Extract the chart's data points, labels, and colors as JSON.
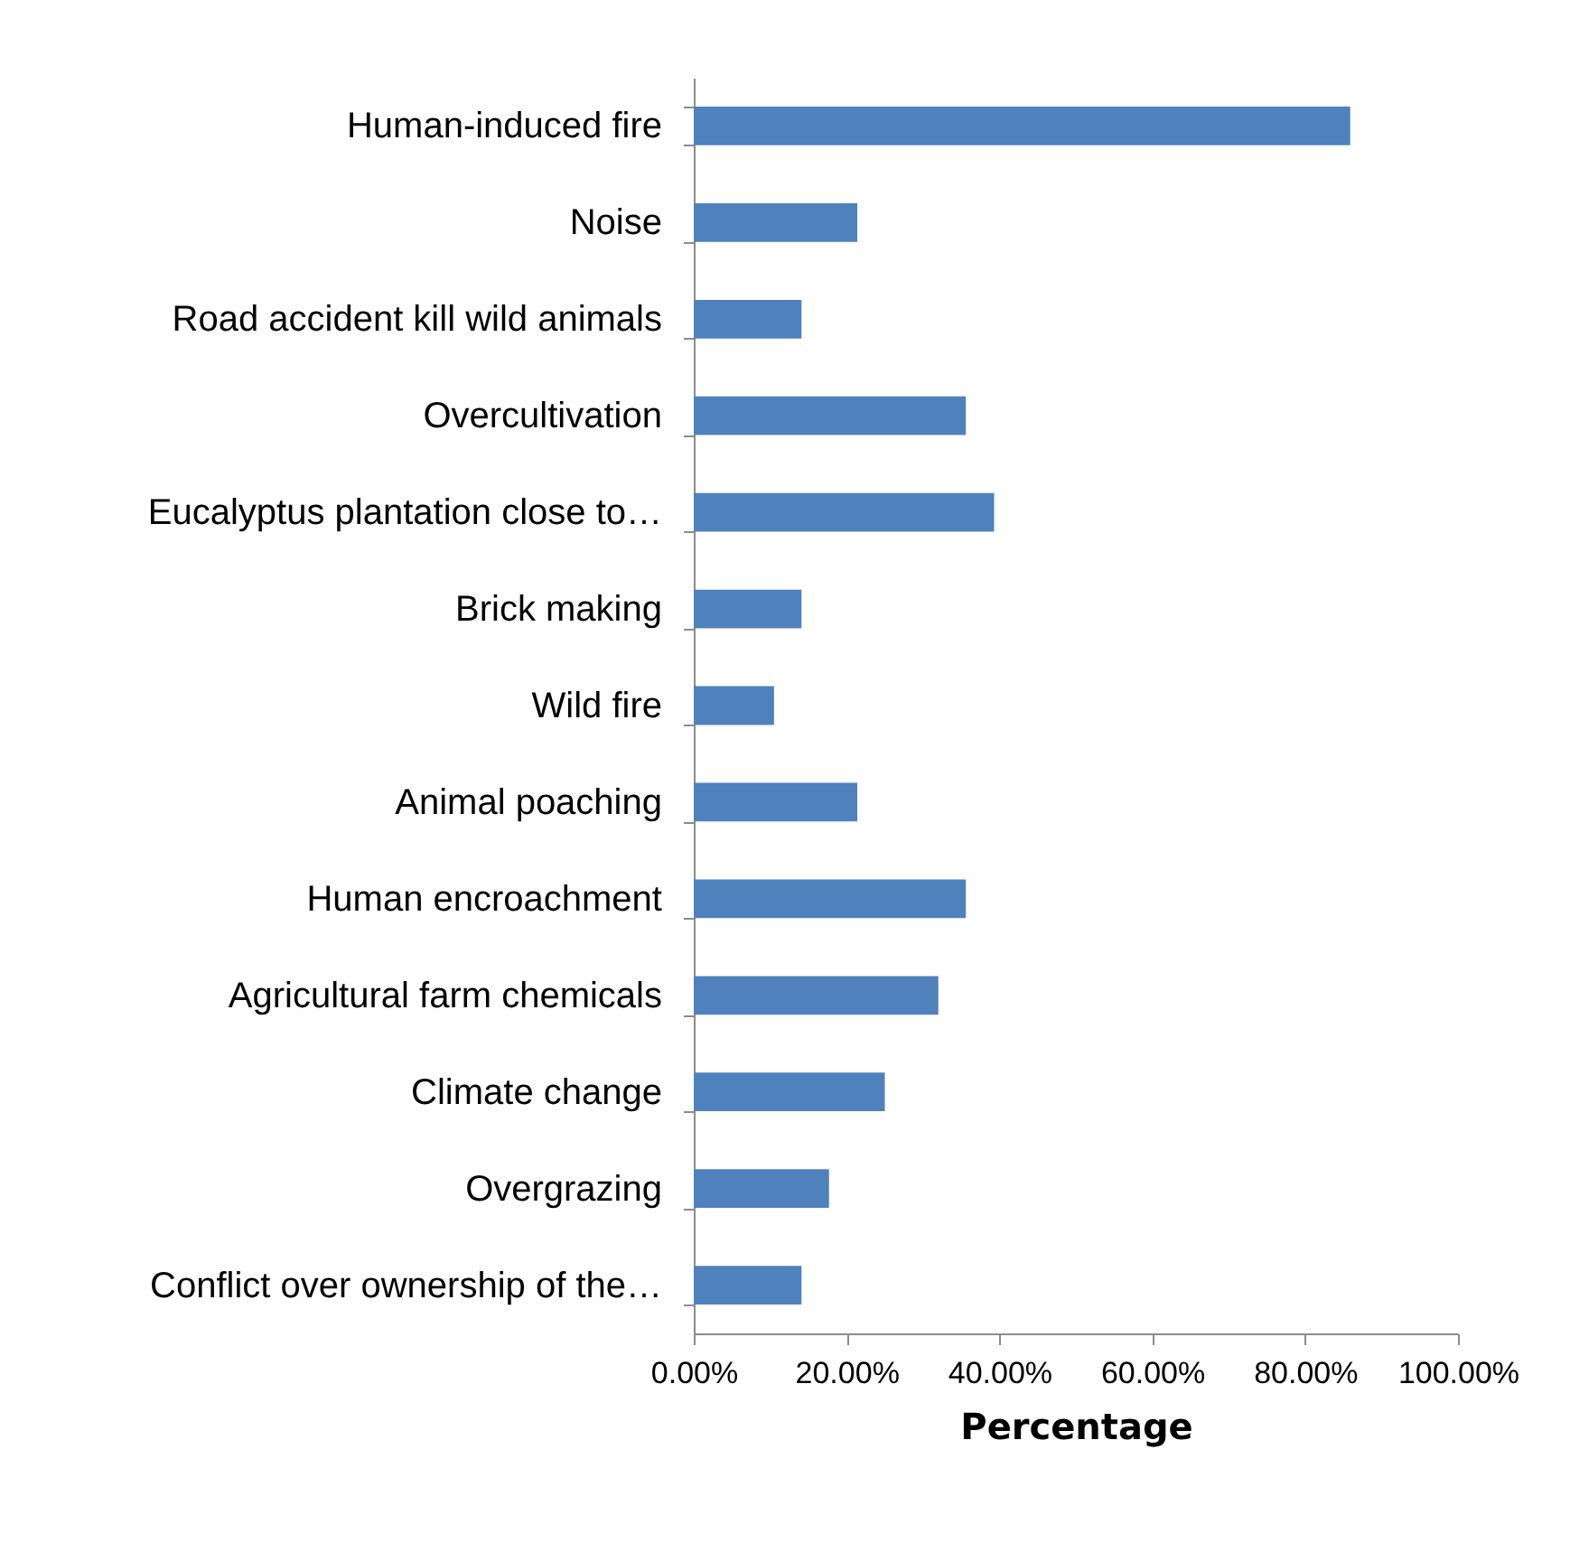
{
  "chart_data": {
    "type": "bar",
    "orientation": "horizontal",
    "xlabel": "Percentage",
    "categories": [
      "Human-induced fire",
      "Noise",
      "Road accident kill wild animals",
      "Overcultivation",
      "Eucalyptus plantation close to…",
      "Brick making",
      "Wild fire",
      "Animal poaching",
      "Human encroachment",
      "Agricultural farm chemicals",
      "Climate change",
      "Overgrazing",
      "Conflict over ownership of the…"
    ],
    "values": [
      85.9,
      21.4,
      14.1,
      35.6,
      39.3,
      14.1,
      10.5,
      21.4,
      35.6,
      32.0,
      25.0,
      17.7,
      14.1
    ],
    "color": "#4f81bd",
    "xlim": [
      0,
      100
    ],
    "xticks": [
      {
        "value": 0,
        "label": "0.00%"
      },
      {
        "value": 20,
        "label": "20.00%"
      },
      {
        "value": 40,
        "label": "40.00%"
      },
      {
        "value": 60,
        "label": "60.00%"
      },
      {
        "value": 80,
        "label": "80.00%"
      },
      {
        "value": 100,
        "label": "100.00%"
      }
    ],
    "grid": false
  }
}
